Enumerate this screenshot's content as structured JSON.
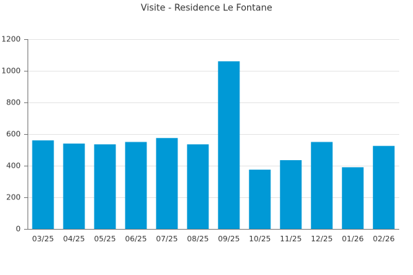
{
  "chart_data": {
    "type": "bar",
    "title": "Visite - Residence Le Fontane",
    "categories": [
      "03/25",
      "04/25",
      "05/25",
      "06/25",
      "07/25",
      "08/25",
      "09/25",
      "10/25",
      "11/25",
      "12/25",
      "01/26",
      "02/26"
    ],
    "values": [
      560,
      540,
      535,
      550,
      575,
      535,
      1060,
      375,
      435,
      550,
      390,
      525
    ],
    "color": "#0099d6",
    "ylim": [
      0,
      1200
    ],
    "yticks": [
      0,
      200,
      400,
      600,
      800,
      1000,
      1200
    ],
    "grid": true
  }
}
